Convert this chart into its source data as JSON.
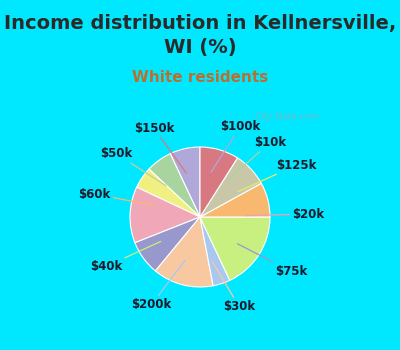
{
  "title": "Income distribution in Kellnersville,\nWI (%)",
  "subtitle": "White residents",
  "labels": [
    "$100k",
    "$10k",
    "$125k",
    "$20k",
    "$75k",
    "$30k",
    "$200k",
    "$40k",
    "$60k",
    "$50k",
    "$150k"
  ],
  "values": [
    7,
    6,
    5,
    13,
    8,
    14,
    4,
    18,
    8,
    8,
    9
  ],
  "colors": [
    "#b0a8d8",
    "#a8d4a0",
    "#f0f080",
    "#f0a8b8",
    "#9898cc",
    "#f8c8a0",
    "#a8c8f0",
    "#c8f080",
    "#f8b870",
    "#c8c8a8",
    "#d87880"
  ],
  "bg_cyan": "#00e8ff",
  "bg_chart": "#dff0e8",
  "title_color": "#2a2a2a",
  "subtitle_color": "#b87030",
  "title_fontsize": 14,
  "subtitle_fontsize": 11,
  "label_fontsize": 8.5,
  "startangle": 90,
  "line_colors": [
    "#b0a8d8",
    "#a8d4a0",
    "#e8e870",
    "#f0a0b0",
    "#9898cc",
    "#f8c8a0",
    "#a8c8f0",
    "#c8f080",
    "#f8b870",
    "#c8c8a8",
    "#d87880"
  ]
}
